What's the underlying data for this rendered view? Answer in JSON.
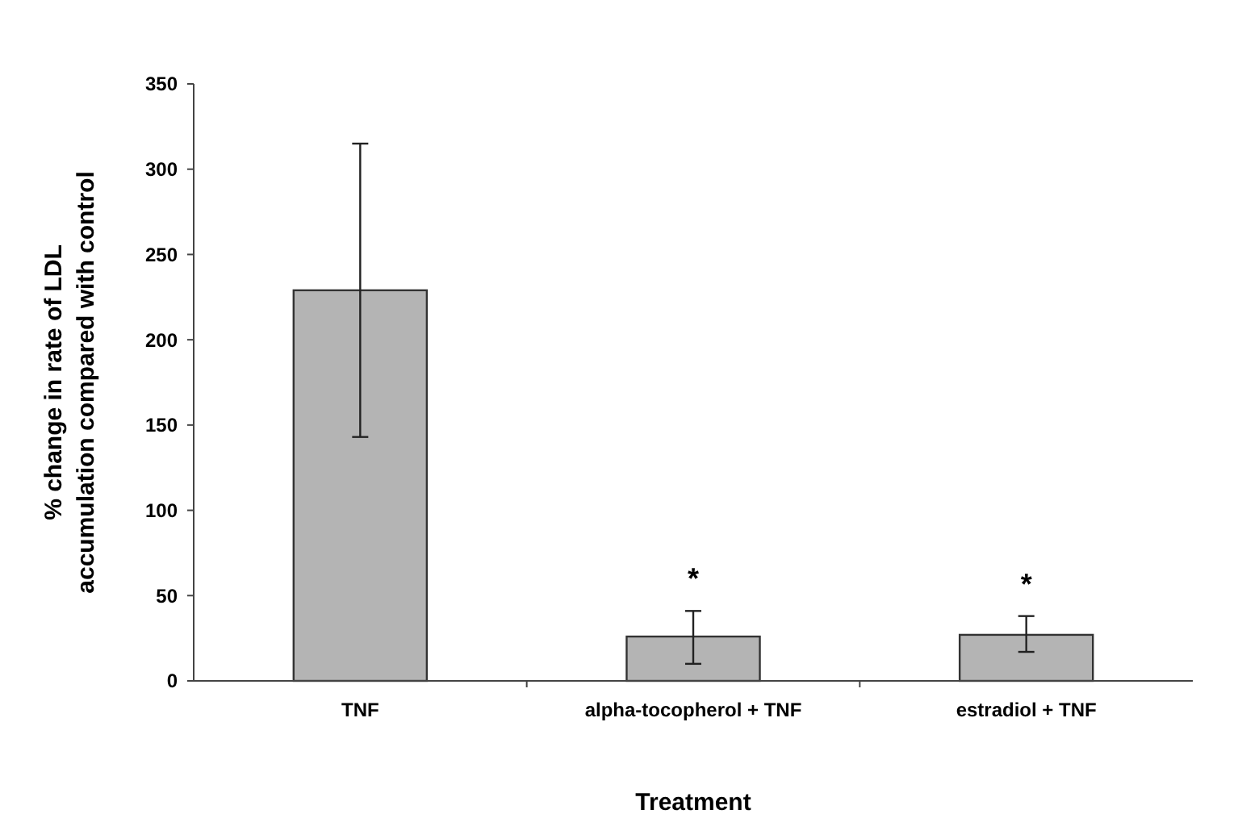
{
  "chart_data": {
    "type": "bar",
    "xlabel": "Treatment",
    "ylabel": "% change in rate of LDL accumulation compared with control",
    "categories": [
      "TNF",
      "alpha-tocopherol + TNF",
      "estradiol + TNF"
    ],
    "values": [
      229,
      26,
      27
    ],
    "color": "#b4b4b4",
    "errors": [
      [
        143,
        315
      ],
      [
        10,
        41
      ],
      [
        17,
        38
      ]
    ],
    "ylim": [
      0,
      350
    ],
    "yticks": [
      0,
      50,
      100,
      150,
      200,
      250,
      300,
      350
    ],
    "grid": false,
    "annotations": [
      "*",
      "*"
    ]
  }
}
